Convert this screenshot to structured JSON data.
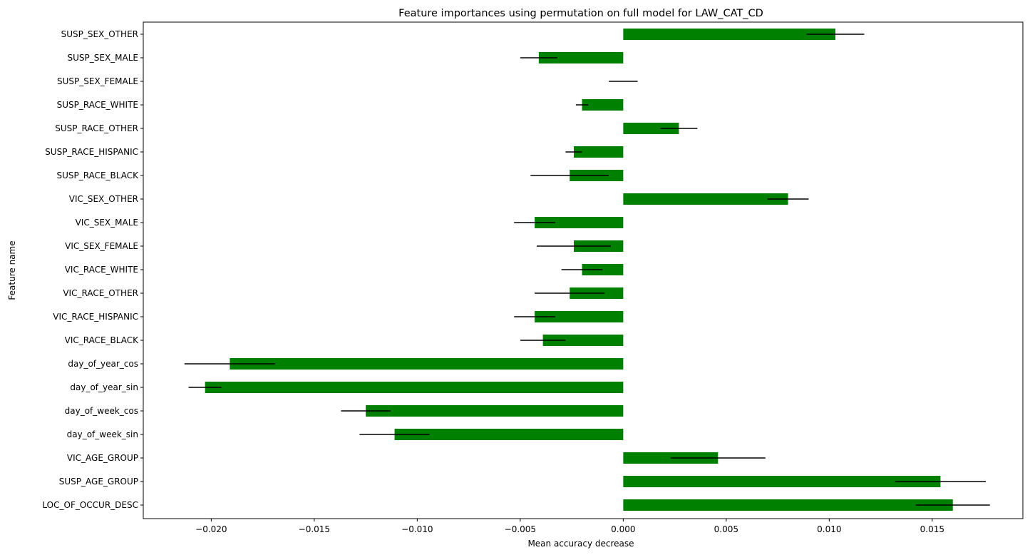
{
  "chart_data": {
    "type": "bar",
    "orientation": "horizontal",
    "title": "Feature importances using permutation on full model for LAW_CAT_CD",
    "xlabel": "Mean accuracy decrease",
    "ylabel": "Feature name",
    "xlim": [
      -0.0233,
      0.0194
    ],
    "xticks": [
      -0.02,
      -0.015,
      -0.01,
      -0.005,
      0.0,
      0.005,
      0.01,
      0.015
    ],
    "xtick_labels": [
      "−0.020",
      "−0.015",
      "−0.010",
      "−0.005",
      "0.000",
      "0.005",
      "0.010",
      "0.015"
    ],
    "grid": false,
    "bar_color": "#008000",
    "error_color": "#000000",
    "categories": [
      "SUSP_SEX_OTHER",
      "SUSP_SEX_MALE",
      "SUSP_SEX_FEMALE",
      "SUSP_RACE_WHITE",
      "SUSP_RACE_OTHER",
      "SUSP_RACE_HISPANIC",
      "SUSP_RACE_BLACK",
      "VIC_SEX_OTHER",
      "VIC_SEX_MALE",
      "VIC_SEX_FEMALE",
      "VIC_RACE_WHITE",
      "VIC_RACE_OTHER",
      "VIC_RACE_HISPANIC",
      "VIC_RACE_BLACK",
      "day_of_year_cos",
      "day_of_year_sin",
      "day_of_week_cos",
      "day_of_week_sin",
      "VIC_AGE_GROUP",
      "SUSP_AGE_GROUP",
      "LOC_OF_OCCUR_DESC"
    ],
    "values": [
      0.0103,
      -0.0041,
      0.0,
      -0.002,
      0.0027,
      -0.0024,
      -0.0026,
      0.008,
      -0.0043,
      -0.0024,
      -0.002,
      -0.0026,
      -0.0043,
      -0.0039,
      -0.0191,
      -0.0203,
      -0.0125,
      -0.0111,
      0.0046,
      0.0154,
      0.016
    ],
    "errors": [
      0.0014,
      0.0009,
      0.0007,
      0.0003,
      0.0009,
      0.0004,
      0.0019,
      0.001,
      0.001,
      0.0018,
      0.001,
      0.0017,
      0.001,
      0.0011,
      0.0022,
      0.0008,
      0.0012,
      0.0017,
      0.0023,
      0.0022,
      0.0018
    ]
  }
}
